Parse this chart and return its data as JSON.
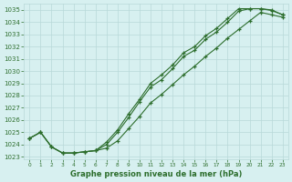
{
  "hours": [
    0,
    1,
    2,
    3,
    4,
    5,
    6,
    7,
    8,
    9,
    10,
    11,
    12,
    13,
    14,
    15,
    16,
    17,
    18,
    19,
    20,
    21,
    22,
    23
  ],
  "upper": [
    1024.5,
    1025.0,
    1023.8,
    1023.3,
    1023.3,
    1023.4,
    1023.5,
    1024.2,
    1025.2,
    1026.5,
    1027.7,
    1029.0,
    1029.7,
    1030.5,
    1031.5,
    1032.0,
    1032.9,
    1033.5,
    1034.3,
    1035.1,
    1035.1,
    1035.1,
    1035.0,
    1034.6
  ],
  "middle": [
    1024.5,
    1025.0,
    1023.8,
    1023.3,
    1023.3,
    1023.4,
    1023.5,
    1024.0,
    1025.0,
    1026.2,
    1027.5,
    1028.7,
    1029.3,
    1030.2,
    1031.2,
    1031.7,
    1032.6,
    1033.2,
    1034.0,
    1034.9,
    1035.1,
    1035.1,
    1034.95,
    1034.6
  ],
  "lower": [
    1024.5,
    1025.0,
    1023.8,
    1023.3,
    1023.3,
    1023.4,
    1023.5,
    1023.7,
    1024.3,
    1025.3,
    1026.3,
    1027.4,
    1028.1,
    1028.9,
    1029.7,
    1030.4,
    1031.2,
    1031.9,
    1032.7,
    1033.4,
    1034.1,
    1034.8,
    1034.6,
    1034.4
  ],
  "line_color": "#2d6e2d",
  "bg_color": "#d7f0f0",
  "grid_color": "#b8d8d8",
  "ylim": [
    1022.8,
    1035.5
  ],
  "yticks": [
    1023,
    1024,
    1025,
    1026,
    1027,
    1028,
    1029,
    1030,
    1031,
    1032,
    1033,
    1034,
    1035
  ],
  "xticks": [
    0,
    1,
    2,
    3,
    4,
    5,
    6,
    7,
    8,
    9,
    10,
    11,
    12,
    13,
    14,
    15,
    16,
    17,
    18,
    19,
    20,
    21,
    22,
    23
  ],
  "xlabel": "Graphe pression niveau de la mer (hPa)"
}
